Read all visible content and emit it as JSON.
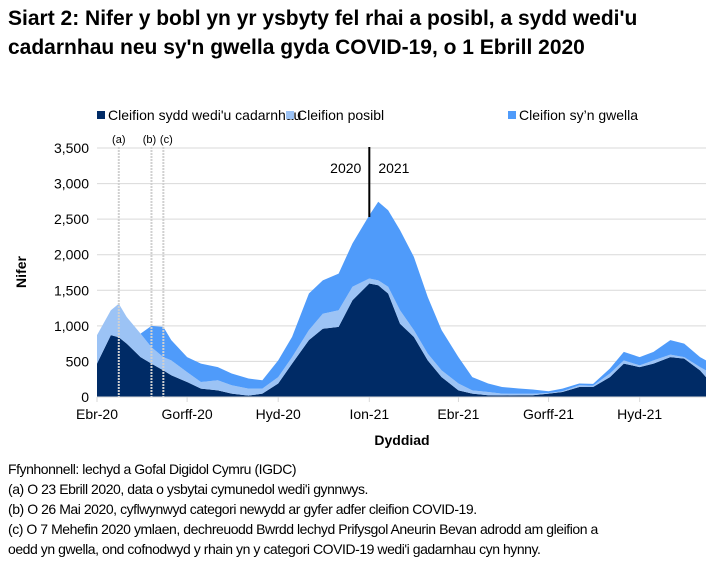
{
  "title": "Siart 2: Nifer y bobl yn yr ysbyty fel rhai a posibl, a sydd wedi'u cadarnhau neu sy'n gwella gyda COVID-19, o 1 Ebrill 2020",
  "chart_data": {
    "type": "area",
    "stacked": true,
    "title": "Siart 2: Nifer y bobl yn yr ysbyty fel rhai a posibl, a sydd wedi'u cadarnhau neu sy'n gwella gyda COVID-19, o 1 Ebrill 2020",
    "xlabel": "Dyddiad",
    "ylabel": "Nifer",
    "ylim": [
      0,
      3500
    ],
    "yticks": [
      0,
      500,
      1000,
      1500,
      2000,
      2500,
      3000,
      3500
    ],
    "ytick_labels": [
      "0",
      "500",
      "1,000",
      "1,500",
      "2,000",
      "2,500",
      "3,000",
      "3,500"
    ],
    "xlim": [
      "2020-04-01",
      "2021-12-07"
    ],
    "xticks": [
      {
        "date": "2020-04-01",
        "label": "Ebr-20"
      },
      {
        "date": "2020-07-01",
        "label": "Gorff-20"
      },
      {
        "date": "2020-10-01",
        "label": "Hyd-20"
      },
      {
        "date": "2021-01-01",
        "label": "Ion-21"
      },
      {
        "date": "2021-04-01",
        "label": "Ebr-21"
      },
      {
        "date": "2021-07-01",
        "label": "Gorff-21"
      },
      {
        "date": "2021-10-01",
        "label": "Hyd-21"
      }
    ],
    "grid": "horizontal",
    "legend_position": "top",
    "x": [
      "2020-04-01",
      "2020-04-15",
      "2020-04-23",
      "2020-05-01",
      "2020-05-15",
      "2020-05-26",
      "2020-06-07",
      "2020-06-15",
      "2020-07-01",
      "2020-07-15",
      "2020-08-01",
      "2020-08-15",
      "2020-09-01",
      "2020-09-15",
      "2020-10-01",
      "2020-10-15",
      "2020-11-01",
      "2020-11-15",
      "2020-12-01",
      "2020-12-15",
      "2021-01-01",
      "2021-01-10",
      "2021-01-20",
      "2021-02-01",
      "2021-02-15",
      "2021-03-01",
      "2021-03-15",
      "2021-04-01",
      "2021-04-15",
      "2021-05-01",
      "2021-05-15",
      "2021-06-01",
      "2021-06-15",
      "2021-07-01",
      "2021-07-15",
      "2021-08-01",
      "2021-08-15",
      "2021-09-01",
      "2021-09-15",
      "2021-10-01",
      "2021-10-15",
      "2021-11-01",
      "2021-11-15",
      "2021-12-01",
      "2021-12-07"
    ],
    "series": [
      {
        "name": "Cleifion sydd wedi'u cadarnhau",
        "color": "#002b66",
        "values": [
          470,
          870,
          840,
          750,
          560,
          470,
          375,
          305,
          210,
          117,
          94,
          47,
          20,
          47,
          190,
          470,
          800,
          960,
          985,
          1360,
          1595,
          1570,
          1455,
          1030,
          845,
          515,
          280,
          94,
          47,
          25,
          23,
          25,
          25,
          47,
          70,
          140,
          140,
          280,
          470,
          420,
          470,
          560,
          540,
          375,
          280
        ]
      },
      {
        "name": "Cleifion posibl",
        "color": "#9cc3f5",
        "values": [
          400,
          350,
          470,
          375,
          330,
          230,
          185,
          210,
          140,
          93,
          141,
          118,
          97,
          70,
          90,
          90,
          140,
          210,
          235,
          190,
          70,
          70,
          95,
          190,
          95,
          95,
          95,
          96,
          47,
          45,
          24,
          20,
          20,
          10,
          10,
          25,
          20,
          50,
          45,
          25,
          45,
          35,
          20,
          45,
          95
        ]
      },
      {
        "name": "Cleifion sy’n gwella",
        "color": "#4f9bfa",
        "values": [
          0,
          0,
          0,
          0,
          0,
          300,
          425,
          285,
          210,
          260,
          185,
          165,
          143,
          118,
          235,
          285,
          515,
          470,
          515,
          610,
          890,
          1105,
          1075,
          1125,
          1030,
          795,
          565,
          370,
          186,
          120,
          93,
          75,
          60,
          23,
          37,
          25,
          25,
          70,
          120,
          115,
          120,
          205,
          190,
          140,
          140
        ]
      }
    ],
    "annotations": [
      {
        "date": "2020-04-23",
        "label": "(a)"
      },
      {
        "date": "2020-05-26",
        "label": "(b)"
      },
      {
        "date": "2020-06-07",
        "label": "(c)"
      }
    ],
    "year_divider": {
      "date": "2021-01-01",
      "left_label": "2020",
      "right_label": "2021"
    }
  },
  "notes": [
    "Ffynhonnell: lechyd a Gofal Digidol Cymru (IGDC)",
    "(a) O 23 Ebrill 2020, data o ysbytai cymunedol wedi'i gynnwys.",
    "(b) O 26 Mai 2020, cyflwynwyd categori newydd ar gyfer adfer cleifion COVID-19.",
    "(c) O 7 Mehefin 2020 ymlaen, dechreuodd Bwrdd lechyd Prifysgol Aneurin Bevan adrodd am gleifion a",
    "oedd yn gwella, ond cofnodwyd y rhain yn y categori COVID-19 wedi'i gadarnhau cyn hynny."
  ]
}
